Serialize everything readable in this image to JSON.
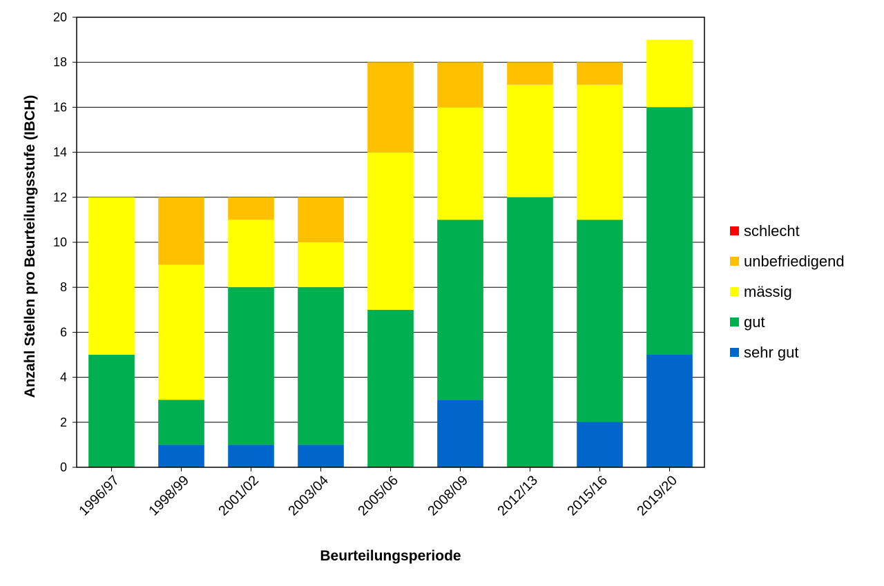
{
  "chart_data": {
    "type": "bar",
    "stacked": true,
    "title": "",
    "xlabel": "Beurteilungsperiode",
    "ylabel": "Anzahl Stellen pro Beurteilungsstufe (IBCH)",
    "ylim": [
      0,
      20
    ],
    "yticks": [
      0,
      2,
      4,
      6,
      8,
      10,
      12,
      14,
      16,
      18,
      20
    ],
    "grid": "horizontal",
    "legend_position": "right",
    "categories": [
      "1996/97",
      "1998/99",
      "2001/02",
      "2003/04",
      "2005/06",
      "2008/09",
      "2012/13",
      "2015/16",
      "2019/20"
    ],
    "series": [
      {
        "name": "sehr gut",
        "color": "#0066cc",
        "values": [
          0,
          1,
          1,
          1,
          0,
          3,
          0,
          2,
          5
        ]
      },
      {
        "name": "gut",
        "color": "#00b050",
        "values": [
          5,
          2,
          7,
          7,
          7,
          8,
          12,
          9,
          11
        ]
      },
      {
        "name": "mässig",
        "color": "#ffff00",
        "values": [
          7,
          6,
          3,
          2,
          7,
          5,
          5,
          6,
          3
        ]
      },
      {
        "name": "unbefriedigend",
        "color": "#ffc000",
        "values": [
          0,
          3,
          1,
          2,
          4,
          2,
          1,
          1,
          0
        ]
      },
      {
        "name": "schlecht",
        "color": "#ff0000",
        "values": [
          0,
          0,
          0,
          0,
          0,
          0,
          0,
          0,
          0
        ]
      }
    ],
    "legend_order": [
      "schlecht",
      "unbefriedigend",
      "mässig",
      "gut",
      "sehr gut"
    ]
  }
}
